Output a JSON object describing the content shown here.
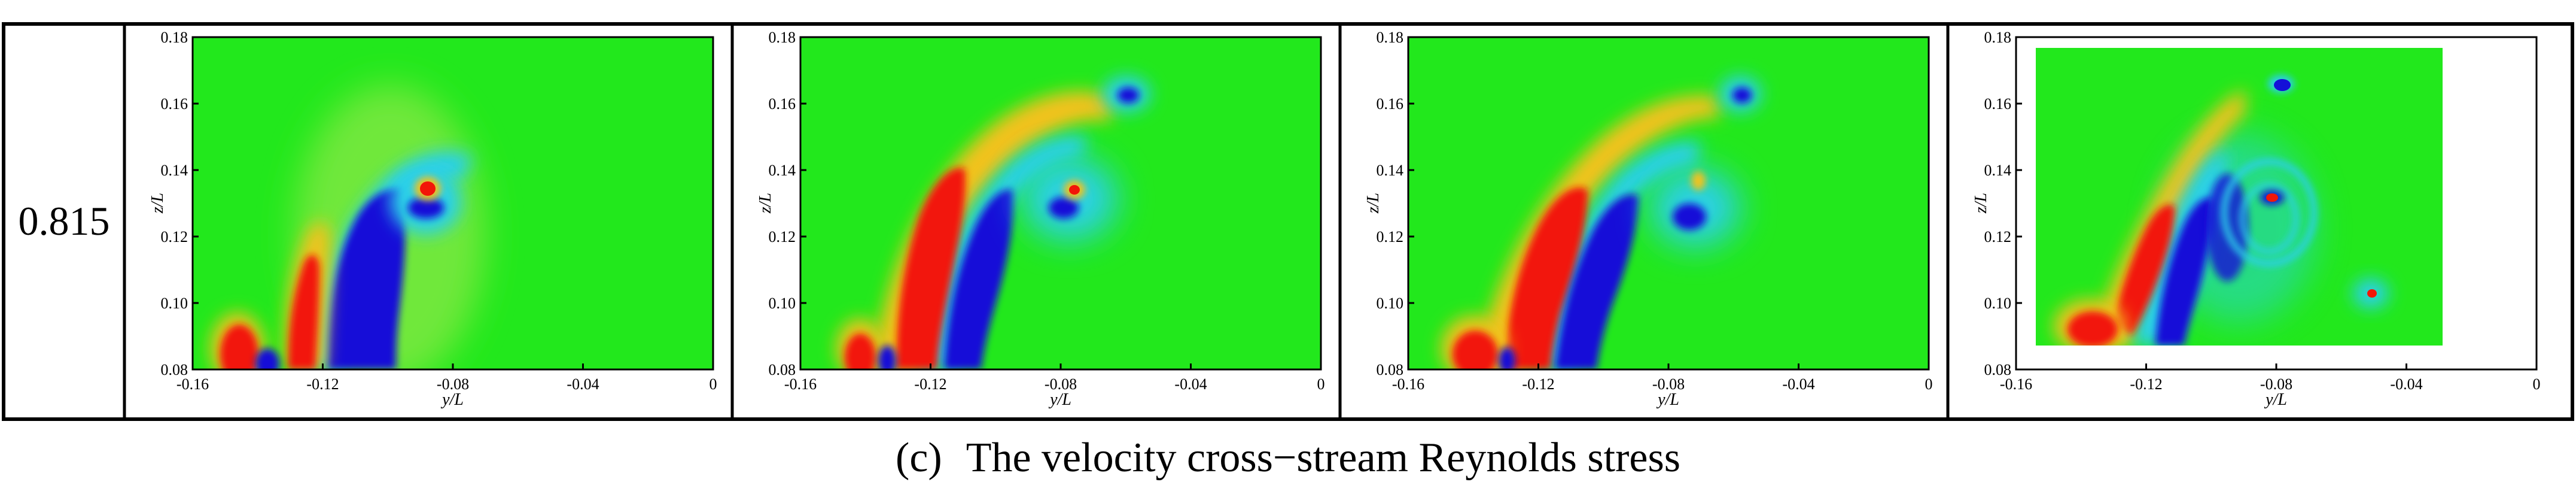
{
  "row_label": "0.815",
  "caption": {
    "label": "(c)",
    "text": "The velocity cross−stream Reynolds stress"
  },
  "panels": [
    {
      "id": "p1",
      "xlabel": "y/L",
      "ylabel": "z/L",
      "xticks": [
        "-0.16",
        "-0.12",
        "-0.08",
        "-0.04",
        "0"
      ],
      "yticks": [
        "0.08",
        "0.10",
        "0.12",
        "0.14",
        "0.16",
        "0.18"
      ],
      "xlim": [
        -0.16,
        0
      ],
      "ylim": [
        0.08,
        0.18
      ]
    },
    {
      "id": "p2",
      "xlabel": "y/L",
      "ylabel": "z/L",
      "xticks": [
        "-0.16",
        "-0.12",
        "-0.08",
        "-0.04",
        "0"
      ],
      "yticks": [
        "0.08",
        "0.10",
        "0.12",
        "0.14",
        "0.16",
        "0.18"
      ],
      "xlim": [
        -0.16,
        0
      ],
      "ylim": [
        0.08,
        0.18
      ]
    },
    {
      "id": "p3",
      "xlabel": "y/L",
      "ylabel": "z/L",
      "xticks": [
        "-0.16",
        "-0.12",
        "-0.08",
        "-0.04",
        "0"
      ],
      "yticks": [
        "0.08",
        "0.10",
        "0.12",
        "0.14",
        "0.16",
        "0.18"
      ],
      "xlim": [
        -0.16,
        0
      ],
      "ylim": [
        0.08,
        0.18
      ]
    },
    {
      "id": "p4",
      "xlabel": "y/L",
      "ylabel": "z/L",
      "xticks": [
        "-0.16",
        "-0.12",
        "-0.08",
        "-0.04",
        "0"
      ],
      "yticks": [
        "0.08",
        "0.10",
        "0.12",
        "0.14",
        "0.16",
        "0.18"
      ],
      "xlim": [
        -0.16,
        0
      ],
      "ylim": [
        0.08,
        0.18
      ]
    }
  ],
  "colors": {
    "background_field": "#22e81c",
    "positive_strong": "#f21608",
    "positive_mid": "#f2c21a",
    "negative_strong": "#1410d8",
    "negative_mid": "#2ad0e8",
    "frame": "#000000"
  }
}
